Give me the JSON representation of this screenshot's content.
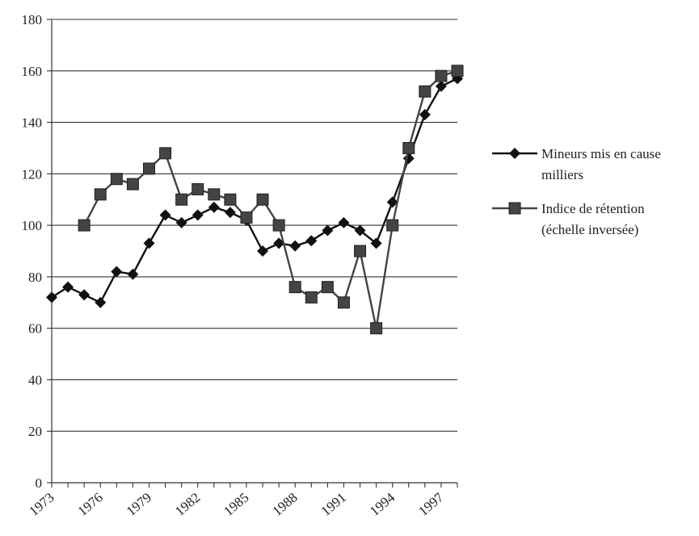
{
  "chart_data": {
    "type": "line",
    "title": "",
    "xlabel": "",
    "ylabel": "",
    "ylim": [
      0,
      180
    ],
    "xlim": [
      1973,
      1998
    ],
    "y_ticks": [
      0,
      20,
      40,
      60,
      80,
      100,
      120,
      140,
      160,
      180
    ],
    "x_tick_labels": [
      "1973",
      "1976",
      "1979",
      "1982",
      "1985",
      "1988",
      "1991",
      "1994",
      "1997"
    ],
    "grid": "horizontal",
    "legend_position": "right",
    "series": [
      {
        "name_lines": [
          "Mineurs mis en cause",
          "milliers"
        ],
        "marker": "diamond",
        "color": "#111111",
        "x": [
          1973,
          1974,
          1975,
          1976,
          1977,
          1978,
          1979,
          1980,
          1981,
          1982,
          1983,
          1984,
          1985,
          1986,
          1987,
          1988,
          1989,
          1990,
          1991,
          1992,
          1993,
          1994,
          1995,
          1996,
          1997,
          1998
        ],
        "y": [
          72,
          76,
          73,
          70,
          82,
          81,
          93,
          104,
          101,
          104,
          107,
          105,
          102,
          90,
          93,
          92,
          94,
          98,
          101,
          98,
          93,
          109,
          126,
          143,
          154,
          157
        ]
      },
      {
        "name_lines": [
          "Indice de rétention",
          "(échelle inversée)"
        ],
        "marker": "square",
        "color": "#444444",
        "x": [
          1975,
          1976,
          1977,
          1978,
          1979,
          1980,
          1981,
          1982,
          1983,
          1984,
          1985,
          1986,
          1987,
          1988,
          1989,
          1990,
          1991,
          1992,
          1993,
          1994,
          1995,
          1996,
          1997,
          1998
        ],
        "y": [
          100,
          112,
          118,
          116,
          122,
          128,
          110,
          114,
          112,
          110,
          103,
          110,
          100,
          76,
          72,
          76,
          70,
          90,
          60,
          100,
          130,
          152,
          158,
          160
        ]
      }
    ]
  }
}
